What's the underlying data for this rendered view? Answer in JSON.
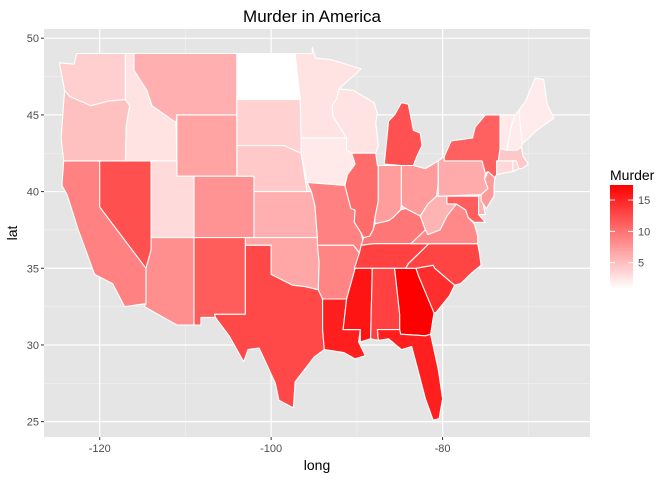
{
  "chart_data": {
    "type": "choropleth",
    "title": "Murder in America",
    "xlabel": "long",
    "ylabel": "lat",
    "xticks": [
      -120,
      -100,
      -80
    ],
    "yticks": [
      25,
      30,
      35,
      40,
      45,
      50
    ],
    "xlim": [
      -126.5,
      -62.8
    ],
    "ylim": [
      24.0,
      50.6
    ],
    "grid": true,
    "legend": {
      "title": "Murder",
      "placement": "right",
      "ticks": [
        5,
        10,
        15
      ],
      "range": [
        0.8,
        17.4
      ],
      "color_low": "#ffffff",
      "color_high": "#ff0000"
    },
    "states": [
      {
        "name": "washington",
        "murder": 4.0
      },
      {
        "name": "oregon",
        "murder": 4.9
      },
      {
        "name": "california",
        "murder": 9.0
      },
      {
        "name": "nevada",
        "murder": 12.2
      },
      {
        "name": "idaho",
        "murder": 2.6
      },
      {
        "name": "montana",
        "murder": 6.0
      },
      {
        "name": "wyoming",
        "murder": 6.8
      },
      {
        "name": "utah",
        "murder": 3.2
      },
      {
        "name": "arizona",
        "murder": 8.1
      },
      {
        "name": "colorado",
        "murder": 7.9
      },
      {
        "name": "new mexico",
        "murder": 11.4
      },
      {
        "name": "north dakota",
        "murder": 0.8
      },
      {
        "name": "south dakota",
        "murder": 3.8
      },
      {
        "name": "nebraska",
        "murder": 4.3
      },
      {
        "name": "kansas",
        "murder": 6.0
      },
      {
        "name": "oklahoma",
        "murder": 6.6
      },
      {
        "name": "texas",
        "murder": 12.7
      },
      {
        "name": "minnesota",
        "murder": 2.7
      },
      {
        "name": "iowa",
        "murder": 2.2
      },
      {
        "name": "missouri",
        "murder": 9.0
      },
      {
        "name": "arkansas",
        "murder": 8.8
      },
      {
        "name": "louisiana",
        "murder": 15.4
      },
      {
        "name": "wisconsin",
        "murder": 2.6
      },
      {
        "name": "illinois",
        "murder": 10.4
      },
      {
        "name": "michigan",
        "murder": 12.1
      },
      {
        "name": "indiana",
        "murder": 7.2
      },
      {
        "name": "ohio",
        "murder": 7.3
      },
      {
        "name": "kentucky",
        "murder": 9.7
      },
      {
        "name": "tennessee",
        "murder": 13.2
      },
      {
        "name": "mississippi",
        "murder": 16.1
      },
      {
        "name": "alabama",
        "murder": 13.2
      },
      {
        "name": "georgia",
        "murder": 17.4
      },
      {
        "name": "florida",
        "murder": 15.4
      },
      {
        "name": "south carolina",
        "murder": 14.4
      },
      {
        "name": "north carolina",
        "murder": 13.0
      },
      {
        "name": "virginia",
        "murder": 8.5
      },
      {
        "name": "west virginia",
        "murder": 5.7
      },
      {
        "name": "pennsylvania",
        "murder": 6.3
      },
      {
        "name": "new york",
        "murder": 11.1
      },
      {
        "name": "maryland",
        "murder": 11.3
      },
      {
        "name": "delaware",
        "murder": 5.9
      },
      {
        "name": "new jersey",
        "murder": 7.4
      },
      {
        "name": "vermont",
        "murder": 2.2
      },
      {
        "name": "new hampshire",
        "murder": 2.1
      },
      {
        "name": "maine",
        "murder": 2.1
      },
      {
        "name": "massachusetts",
        "murder": 4.4
      },
      {
        "name": "connecticut",
        "murder": 3.3
      },
      {
        "name": "rhode island",
        "murder": 3.4
      }
    ]
  }
}
